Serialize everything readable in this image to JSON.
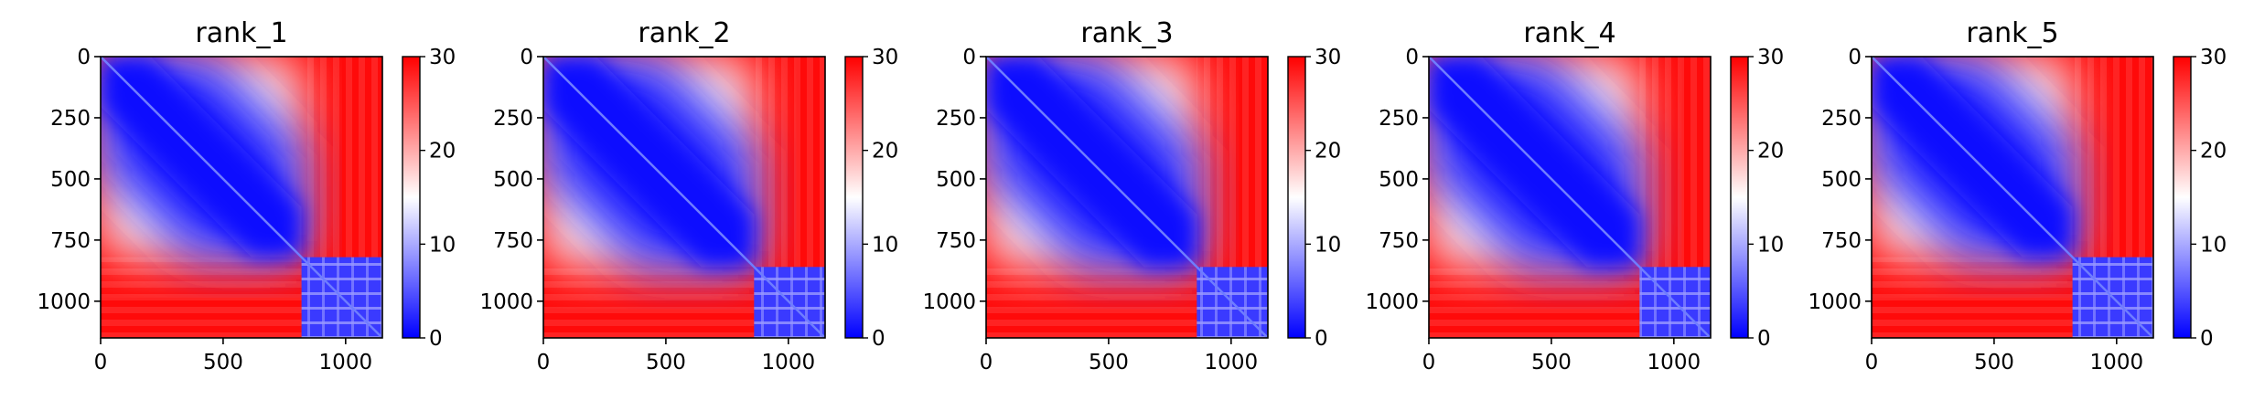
{
  "chart_data": [
    {
      "type": "heatmap",
      "title": "rank_1",
      "x_ticks": [
        0,
        500,
        1000
      ],
      "y_ticks": [
        0,
        250,
        500,
        750,
        1000
      ],
      "n": 1150,
      "split": 820,
      "colorbar": {
        "range": [
          0,
          30
        ],
        "ticks": [
          0,
          10,
          20,
          30
        ],
        "colors": [
          "#0000ff",
          "#ffffff",
          "#ff0000"
        ]
      }
    },
    {
      "type": "heatmap",
      "title": "rank_2",
      "x_ticks": [
        0,
        500,
        1000
      ],
      "y_ticks": [
        0,
        250,
        500,
        750,
        1000
      ],
      "n": 1150,
      "split": 860,
      "colorbar": {
        "range": [
          0,
          30
        ],
        "ticks": [
          0,
          10,
          20,
          30
        ],
        "colors": [
          "#0000ff",
          "#ffffff",
          "#ff0000"
        ]
      }
    },
    {
      "type": "heatmap",
      "title": "rank_3",
      "x_ticks": [
        0,
        500,
        1000
      ],
      "y_ticks": [
        0,
        250,
        500,
        750,
        1000
      ],
      "n": 1150,
      "split": 860,
      "colorbar": {
        "range": [
          0,
          30
        ],
        "ticks": [
          0,
          10,
          20,
          30
        ],
        "colors": [
          "#0000ff",
          "#ffffff",
          "#ff0000"
        ]
      }
    },
    {
      "type": "heatmap",
      "title": "rank_4",
      "x_ticks": [
        0,
        500,
        1000
      ],
      "y_ticks": [
        0,
        250,
        500,
        750,
        1000
      ],
      "n": 1150,
      "split": 860,
      "colorbar": {
        "range": [
          0,
          30
        ],
        "ticks": [
          0,
          10,
          20,
          30
        ],
        "colors": [
          "#0000ff",
          "#ffffff",
          "#ff0000"
        ]
      }
    },
    {
      "type": "heatmap",
      "title": "rank_5",
      "x_ticks": [
        0,
        500,
        1000
      ],
      "y_ticks": [
        0,
        250,
        500,
        750,
        1000
      ],
      "n": 1150,
      "split": 820,
      "colorbar": {
        "range": [
          0,
          30
        ],
        "ticks": [
          0,
          10,
          20,
          30
        ],
        "colors": [
          "#0000ff",
          "#ffffff",
          "#ff0000"
        ]
      }
    }
  ]
}
